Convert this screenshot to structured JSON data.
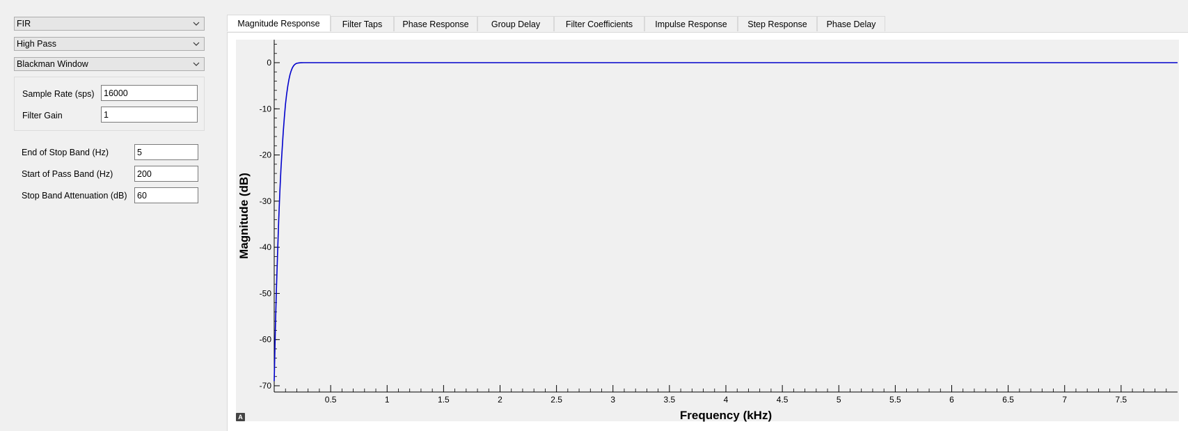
{
  "filter_type": {
    "selected": "FIR"
  },
  "response_type": {
    "selected": "High Pass"
  },
  "window_type": {
    "selected": "Blackman Window"
  },
  "params": {
    "sample_rate_label": "Sample Rate (sps)",
    "sample_rate_value": "16000",
    "filter_gain_label": "Filter Gain",
    "filter_gain_value": "1"
  },
  "band": {
    "stop_band_end_label": "End of Stop Band (Hz)",
    "stop_band_end_value": "5",
    "pass_band_start_label": "Start of Pass Band (Hz)",
    "pass_band_start_value": "200",
    "stop_band_atten_label": "Stop Band Attenuation (dB)",
    "stop_band_atten_value": "60"
  },
  "tabs": [
    {
      "label": "Magnitude Response",
      "active": true
    },
    {
      "label": "Filter Taps",
      "active": false
    },
    {
      "label": "Phase Response",
      "active": false
    },
    {
      "label": "Group Delay",
      "active": false
    },
    {
      "label": "Filter Coefficients",
      "active": false
    },
    {
      "label": "Impulse Response",
      "active": false
    },
    {
      "label": "Step Response",
      "active": false
    },
    {
      "label": "Phase Delay",
      "active": false
    }
  ],
  "autoscale_button": {
    "label": "A"
  },
  "chart_data": {
    "type": "line",
    "xlabel": "Frequency (kHz)",
    "ylabel": "Magnitude (dB)",
    "xlim": [
      0,
      8.0
    ],
    "ylim": [
      -72,
      5
    ],
    "xticks": [
      "0.5",
      "1",
      "1.5",
      "2",
      "2.5",
      "3",
      "3.5",
      "4",
      "4.5",
      "5",
      "5.5",
      "6",
      "6.5",
      "7",
      "7.5"
    ],
    "yticks": [
      "0",
      "-10",
      "-20",
      "-30",
      "-40",
      "-50",
      "-60",
      "-70"
    ],
    "grid": false,
    "line_color": "#0000cc",
    "series": [
      {
        "x": [
          0.0,
          0.01,
          0.02,
          0.03,
          0.04,
          0.05,
          0.06,
          0.07,
          0.08,
          0.09,
          0.1,
          0.11,
          0.12,
          0.13,
          0.14,
          0.15,
          0.16,
          0.17,
          0.18,
          0.19,
          0.2,
          0.22,
          0.24,
          0.26,
          0.28,
          0.3,
          0.32,
          0.35,
          0.4,
          0.5,
          1.0,
          2.0,
          3.0,
          4.0,
          5.0,
          6.0,
          7.0,
          8.0
        ],
        "y": [
          -69,
          -58,
          -49,
          -41,
          -34,
          -28,
          -23,
          -18.8,
          -15,
          -11.8,
          -9,
          -6.9,
          -5.1,
          -3.7,
          -2.6,
          -1.8,
          -1.15,
          -0.72,
          -0.43,
          -0.25,
          -0.14,
          -0.05,
          -0.015,
          -0.004,
          -0.001,
          0,
          0,
          0,
          0,
          0,
          0,
          0,
          0,
          0,
          0,
          0,
          0,
          0
        ]
      }
    ]
  }
}
